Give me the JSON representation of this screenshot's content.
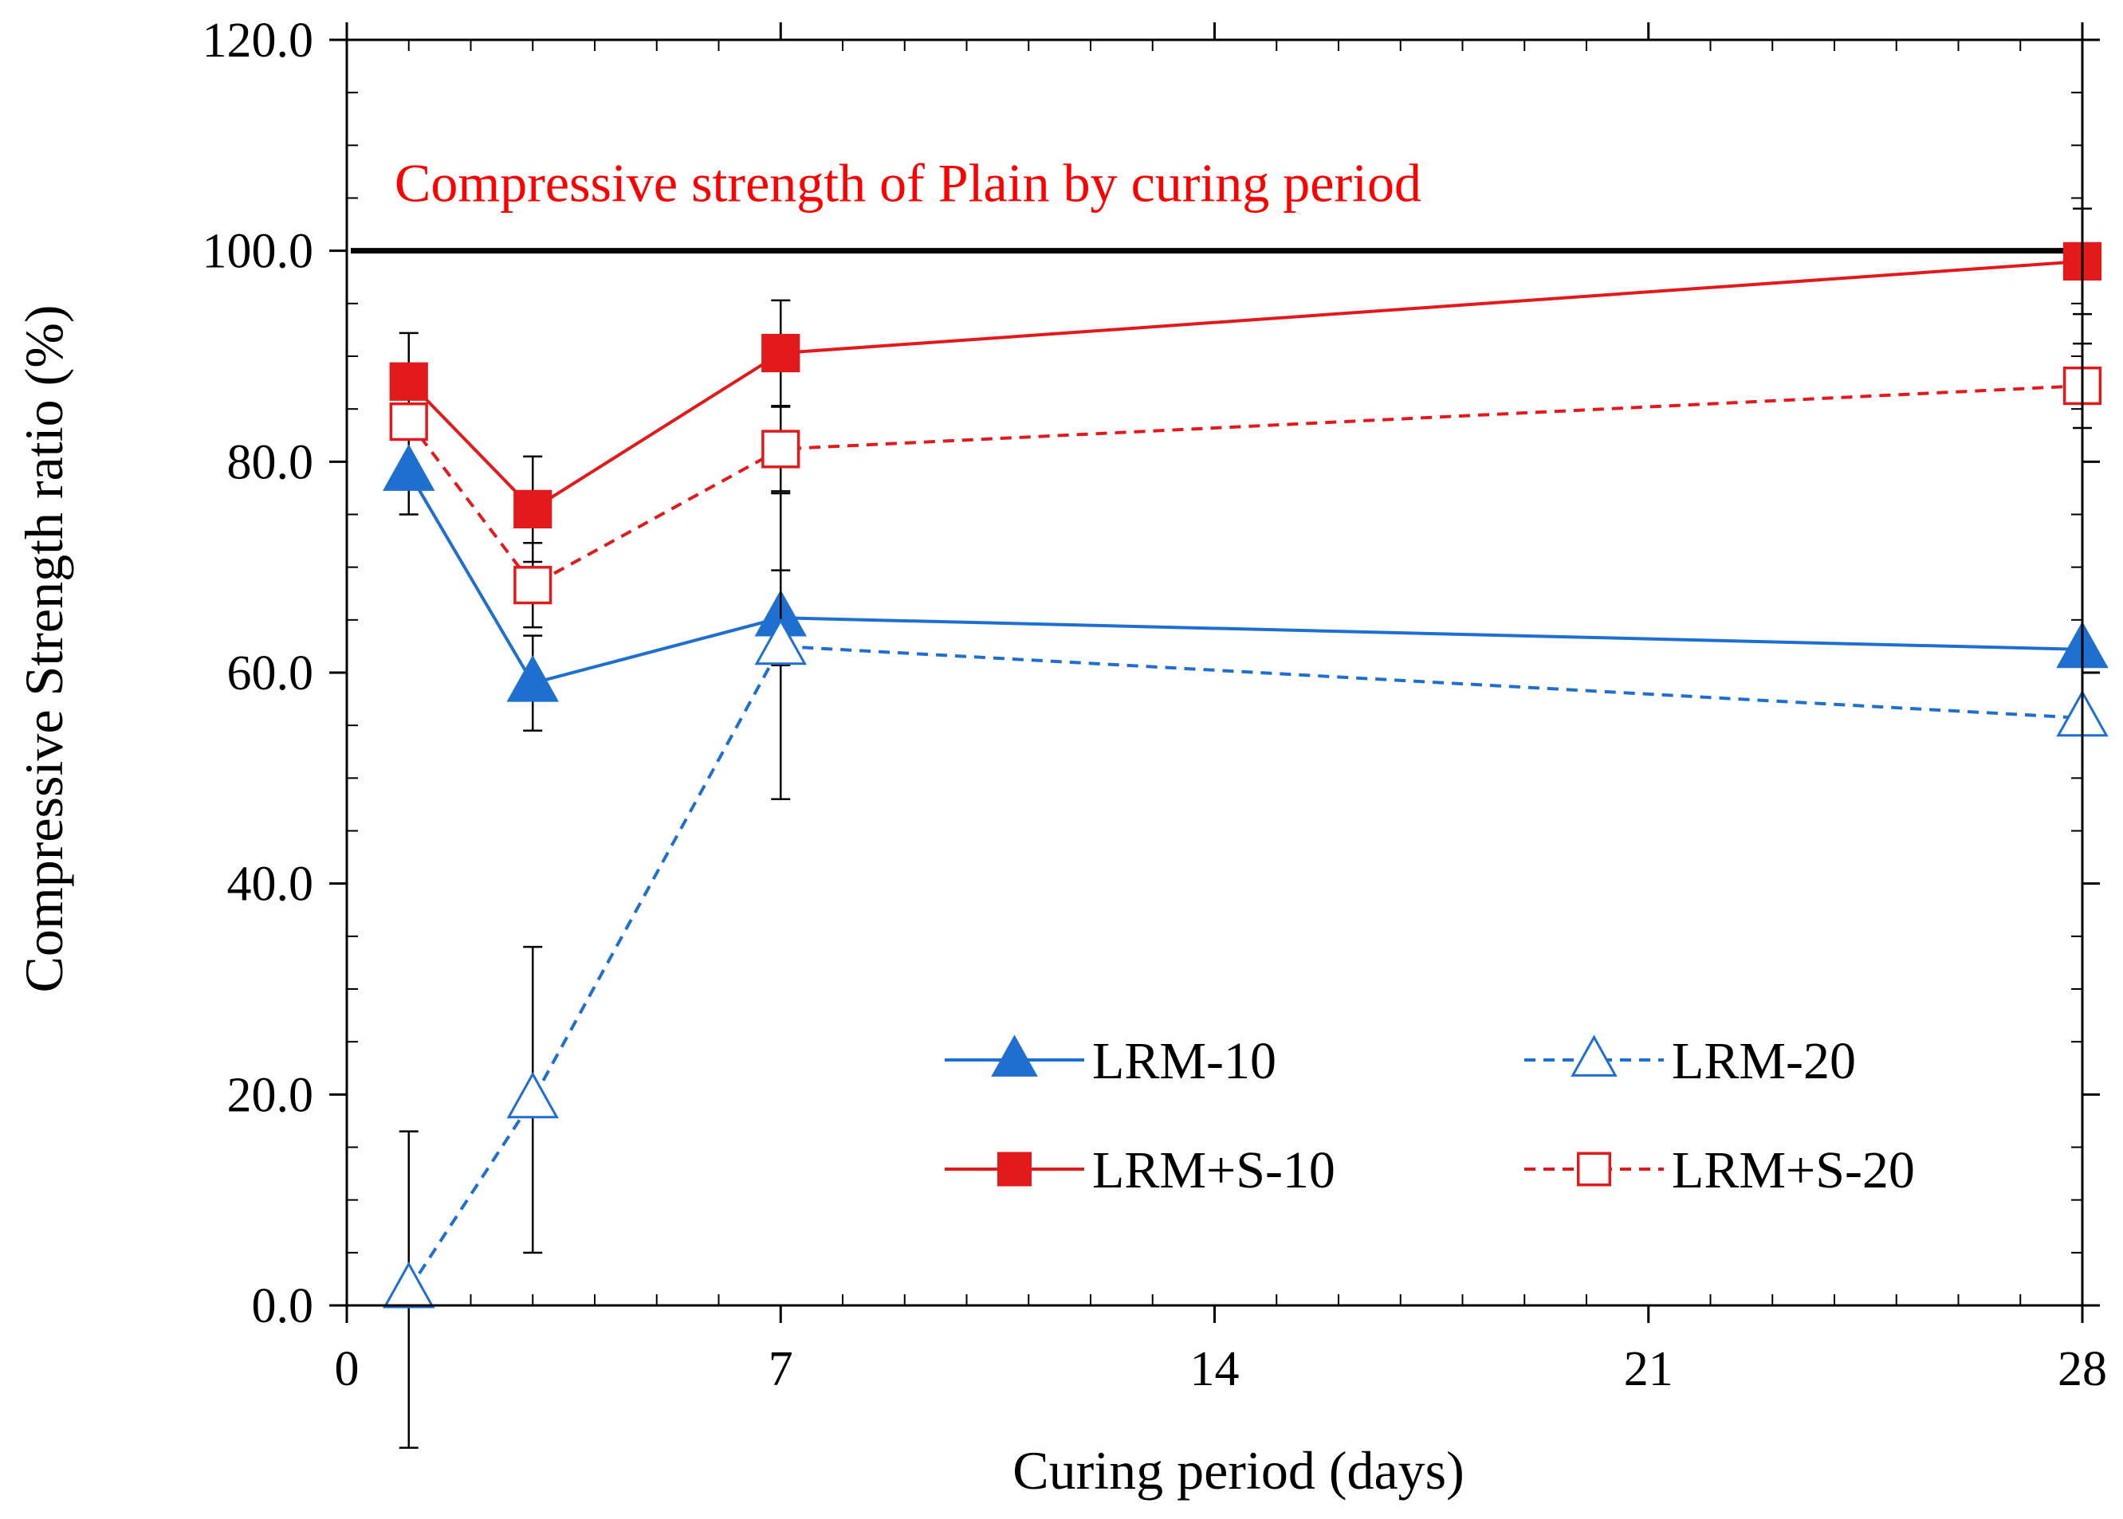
{
  "chart_data": {
    "type": "line",
    "title": "",
    "xlabel": "Curing period (days)",
    "ylabel": "Compressive Strength ratio (%)",
    "xlim": [
      0,
      28
    ],
    "ylim": [
      0,
      120
    ],
    "xticks": [
      0,
      7,
      14,
      21,
      28
    ],
    "xtick_labels": [
      "0",
      "7",
      "14",
      "21",
      "28"
    ],
    "yticks": [
      0,
      20,
      40,
      60,
      80,
      100,
      120
    ],
    "ytick_labels": [
      "0.0",
      "20.0",
      "40.0",
      "60.0",
      "80.0",
      "100.0",
      "120.0"
    ],
    "grid": false,
    "legend_position": "lower-right",
    "reference_line": {
      "y": 100,
      "label": "Compressive strength of  Plain by curing period",
      "color": "#000000",
      "label_color": "#ff0000"
    },
    "series": [
      {
        "name": "LRM-10",
        "color": "#1f6fd1",
        "line_style": "solid",
        "marker": "triangle-filled",
        "x": [
          1,
          3,
          7,
          28
        ],
        "values": [
          79.0,
          59.0,
          65.2,
          62.2
        ],
        "error": [
          4.0,
          4.5,
          4.5,
          0
        ]
      },
      {
        "name": "LRM-20",
        "color": "#1f6fd1",
        "line_style": "dashed",
        "marker": "triangle-open",
        "x": [
          1,
          3,
          7,
          28
        ],
        "values": [
          1.5,
          19.5,
          62.5,
          55.7
        ],
        "error": [
          15.0,
          14.5,
          14.5,
          0
        ]
      },
      {
        "name": "LRM+S-10",
        "color": "#e31a1c",
        "line_style": "solid",
        "marker": "square-filled",
        "x": [
          1,
          3,
          7,
          28
        ],
        "values": [
          87.6,
          75.5,
          90.3,
          99.0
        ],
        "error": [
          4.6,
          5.0,
          5.0,
          5.0
        ]
      },
      {
        "name": "LRM+S-20",
        "color": "#e31a1c",
        "line_style": "dashed",
        "marker": "square-open",
        "x": [
          1,
          3,
          7,
          28
        ],
        "values": [
          83.8,
          68.3,
          81.2,
          87.2
        ],
        "error": [
          0,
          4.0,
          4.0,
          4.0
        ]
      }
    ]
  }
}
